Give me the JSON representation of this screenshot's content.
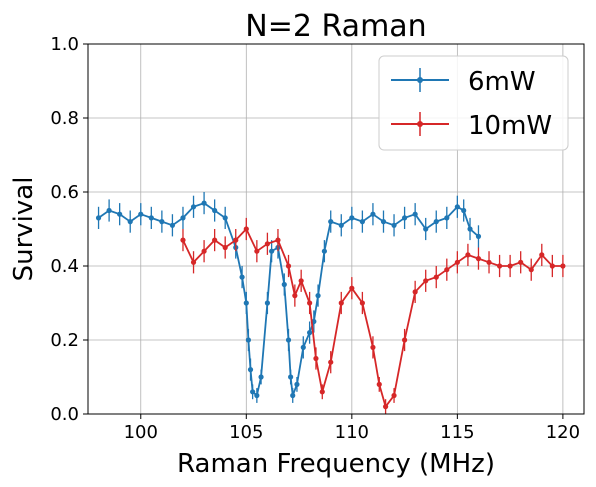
{
  "chart_data": {
    "type": "line",
    "title": "N=2 Raman",
    "xlabel": "Raman Frequency (MHz)",
    "ylabel": "Survival",
    "xlim": [
      97.5,
      121.0
    ],
    "ylim": [
      0.0,
      1.0
    ],
    "xticks": [
      100,
      105,
      110,
      115,
      120
    ],
    "yticks": [
      0.0,
      0.2,
      0.4,
      0.6,
      0.8,
      1.0
    ],
    "xtick_labels": [
      "100",
      "105",
      "110",
      "115",
      "120"
    ],
    "ytick_labels": [
      "0.0",
      "0.2",
      "0.4",
      "0.6",
      "0.8",
      "1.0"
    ],
    "grid": true,
    "legend_position": "top-right",
    "errorbars": true,
    "series": [
      {
        "name": "6mW",
        "color": "#1f77b4",
        "x": [
          98.0,
          98.5,
          99.0,
          99.5,
          100.0,
          100.5,
          101.0,
          101.5,
          102.0,
          102.5,
          103.0,
          103.5,
          104.0,
          104.5,
          104.8,
          105.0,
          105.1,
          105.2,
          105.3,
          105.5,
          105.7,
          106.0,
          106.2,
          106.5,
          106.8,
          107.0,
          107.1,
          107.2,
          107.4,
          107.7,
          108.0,
          108.2,
          108.4,
          108.7,
          109.0,
          109.5,
          110.0,
          110.5,
          111.0,
          111.5,
          112.0,
          112.5,
          113.0,
          113.5,
          114.0,
          114.5,
          115.0,
          115.3,
          115.6,
          116.0
        ],
        "y": [
          0.53,
          0.55,
          0.54,
          0.52,
          0.54,
          0.53,
          0.52,
          0.51,
          0.53,
          0.56,
          0.57,
          0.55,
          0.53,
          0.45,
          0.37,
          0.3,
          0.2,
          0.12,
          0.06,
          0.05,
          0.1,
          0.3,
          0.44,
          0.45,
          0.35,
          0.2,
          0.1,
          0.05,
          0.08,
          0.18,
          0.22,
          0.25,
          0.32,
          0.44,
          0.52,
          0.51,
          0.53,
          0.52,
          0.54,
          0.52,
          0.51,
          0.53,
          0.54,
          0.5,
          0.52,
          0.53,
          0.56,
          0.55,
          0.5,
          0.48
        ],
        "err": [
          0.03,
          0.03,
          0.03,
          0.03,
          0.03,
          0.03,
          0.03,
          0.03,
          0.03,
          0.03,
          0.03,
          0.03,
          0.03,
          0.03,
          0.03,
          0.03,
          0.03,
          0.03,
          0.02,
          0.02,
          0.02,
          0.03,
          0.03,
          0.03,
          0.03,
          0.03,
          0.02,
          0.02,
          0.02,
          0.03,
          0.03,
          0.03,
          0.03,
          0.03,
          0.03,
          0.03,
          0.03,
          0.03,
          0.03,
          0.03,
          0.03,
          0.03,
          0.03,
          0.03,
          0.03,
          0.03,
          0.03,
          0.03,
          0.03,
          0.03
        ]
      },
      {
        "name": "10mW",
        "color": "#d62728",
        "x": [
          102.0,
          102.5,
          103.0,
          103.5,
          104.0,
          104.5,
          105.0,
          105.5,
          106.0,
          106.5,
          107.0,
          107.3,
          107.6,
          108.0,
          108.3,
          108.6,
          109.0,
          109.5,
          110.0,
          110.5,
          111.0,
          111.3,
          111.6,
          112.0,
          112.5,
          113.0,
          113.5,
          114.0,
          114.5,
          115.0,
          115.5,
          116.0,
          116.5,
          117.0,
          117.5,
          118.0,
          118.5,
          119.0,
          119.5,
          120.0
        ],
        "y": [
          0.47,
          0.41,
          0.44,
          0.47,
          0.45,
          0.47,
          0.5,
          0.44,
          0.46,
          0.47,
          0.4,
          0.32,
          0.36,
          0.3,
          0.15,
          0.06,
          0.14,
          0.3,
          0.34,
          0.3,
          0.18,
          0.08,
          0.02,
          0.05,
          0.2,
          0.33,
          0.36,
          0.37,
          0.39,
          0.41,
          0.43,
          0.42,
          0.41,
          0.4,
          0.4,
          0.41,
          0.39,
          0.43,
          0.4,
          0.4
        ],
        "err": [
          0.03,
          0.03,
          0.03,
          0.03,
          0.03,
          0.03,
          0.03,
          0.03,
          0.03,
          0.03,
          0.03,
          0.03,
          0.03,
          0.03,
          0.03,
          0.02,
          0.03,
          0.03,
          0.03,
          0.03,
          0.03,
          0.02,
          0.02,
          0.02,
          0.03,
          0.03,
          0.03,
          0.03,
          0.03,
          0.03,
          0.03,
          0.03,
          0.03,
          0.03,
          0.03,
          0.03,
          0.03,
          0.03,
          0.03,
          0.03
        ]
      }
    ]
  }
}
